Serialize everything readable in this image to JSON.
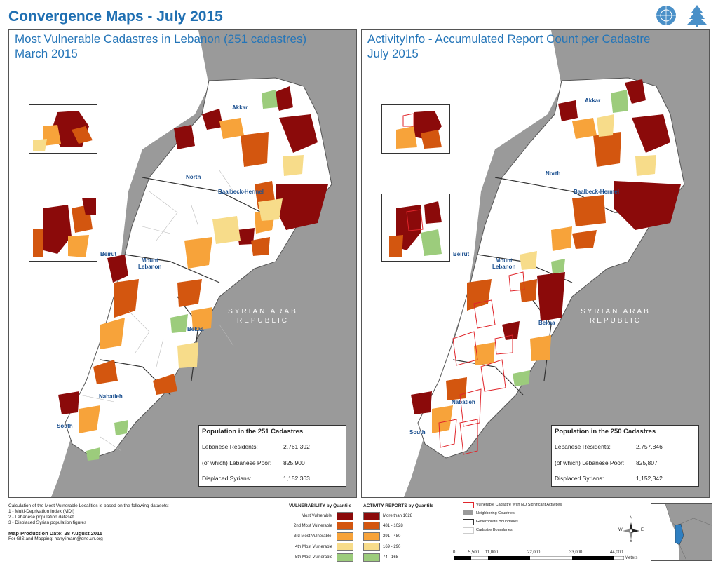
{
  "header": {
    "title": "Convergence Maps - July 2015"
  },
  "left_map": {
    "title_line1": "Most Vulnerable Cadastres in Lebanon (251 cadastres)",
    "title_line2": "March 2015",
    "labels": {
      "akkar": "Akkar",
      "north": "North",
      "baalbeck": "Baalbeck-Hermel",
      "beirut": "Beirut",
      "mount1": "Mount",
      "mount2": "Lebanon",
      "bekaa": "Bekaa",
      "nabatieh": "Nabatieh",
      "south": "South"
    },
    "syria1": "SYRIAN ARAB",
    "syria2": "REPUBLIC",
    "pop_box": {
      "heading": "Population in the 251 Cadastres",
      "residents_label": "Lebanese Residents:",
      "residents_value": "2,761,392",
      "poor_label": "(of which) Lebanese Poor:",
      "poor_value": "825,900",
      "syrians_label": "Displaced Syrians:",
      "syrians_value": "1,152,363"
    }
  },
  "right_map": {
    "title_line1": "ActivityInfo - Accumulated Report Count per Cadastre",
    "title_line2": "July 2015",
    "labels": {
      "akkar": "Akkar",
      "north": "North",
      "baalbeck": "Baalbeck-Hermel",
      "beirut": "Beirut",
      "mount1": "Mount",
      "mount2": "Lebanon",
      "bekaa": "Bekaa",
      "nabatieh": "Nabatieh",
      "south": "South"
    },
    "syria1": "SYRIAN ARAB",
    "syria2": "REPUBLIC",
    "pop_box": {
      "heading": "Population in the 250 Cadastres",
      "residents_label": "Lebanese Residents:",
      "residents_value": "2,757,846",
      "poor_label": "(of which) Lebanese Poor:",
      "poor_value": "825,807",
      "syrians_label": "Displaced Syrians:",
      "syrians_value": "1,152,342"
    }
  },
  "notes": {
    "intro": "Calculation of the Most Vulnerable Localities is based on the following datasets:",
    "item1": "1 - Multi-Deprivation Index (MDI)",
    "item2": "2 - Lebanese population dataset",
    "item3": "3 - Displaced Syrian population figures",
    "date": "Map Production Date: 28 August 2015",
    "contact": "For GIS and Mapping: hany.imam@one.un.org"
  },
  "legend": {
    "vuln_title": "VULNERABILITY by Quantile",
    "vuln_items": [
      "Most Vulnerable",
      "2nd Most Vulnerable",
      "3rd Most Vulnerable",
      "4th Most Vulnerable",
      "5th Most Vulnerable"
    ],
    "act_title": "ACTIVITY REPORTS by Quantile",
    "act_items": [
      "More than 1028",
      "481 - 1028",
      "291 - 480",
      "169 - 290",
      "74 - 168"
    ],
    "colors": [
      "#8b0a0a",
      "#d3560f",
      "#f7a33a",
      "#f7dc8a",
      "#9ccc7c"
    ],
    "outline_items": [
      "Vulnerable Cadastre With NO Significant Activities",
      "Neighboring Countries",
      "Governorate Boundaries",
      "Cadastre Boundaries"
    ],
    "outline_red": "#e0252b",
    "neighbor_gray": "#9a9a9a"
  },
  "scalebar": {
    "ticks": [
      "0",
      "5,500",
      "11,000",
      "22,000",
      "33,000",
      "44,000"
    ],
    "unit": "Meters"
  },
  "north_arrow": {
    "n": "N",
    "s": "S",
    "e": "E",
    "w": "W"
  }
}
